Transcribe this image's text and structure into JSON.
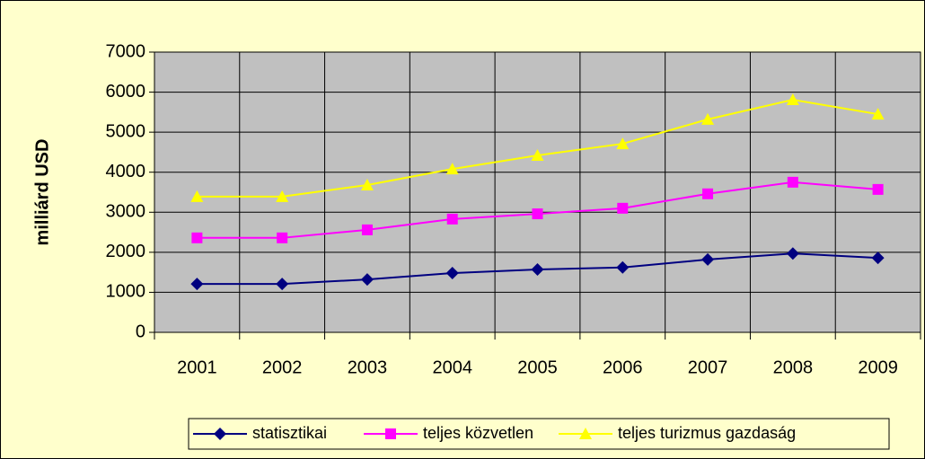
{
  "chart_data": {
    "type": "line",
    "y_label": "milliárd USD",
    "categories": [
      "2001",
      "2002",
      "2003",
      "2004",
      "2005",
      "2006",
      "2007",
      "2008",
      "2009"
    ],
    "series": [
      {
        "name": "statisztikai",
        "color": "#000080",
        "marker": "diamond",
        "values": [
          1210,
          1210,
          1320,
          1480,
          1570,
          1620,
          1820,
          1970,
          1860
        ]
      },
      {
        "name": "teljes közvetlen",
        "color": "#ff00ff",
        "marker": "square",
        "values": [
          2360,
          2360,
          2560,
          2830,
          2960,
          3100,
          3460,
          3750,
          3570
        ]
      },
      {
        "name": "teljes turizmus gazdaság",
        "color": "#ffff00",
        "marker": "triangle",
        "values": [
          3390,
          3390,
          3680,
          4080,
          4420,
          4710,
          5320,
          5810,
          5450
        ]
      }
    ],
    "ylim": [
      0,
      7000
    ],
    "yticks": [
      0,
      1000,
      2000,
      3000,
      4000,
      5000,
      6000,
      7000
    ],
    "grid": true,
    "legend": "bottom",
    "plot_background": "#c0c0c0",
    "background": "#ffffcc"
  }
}
